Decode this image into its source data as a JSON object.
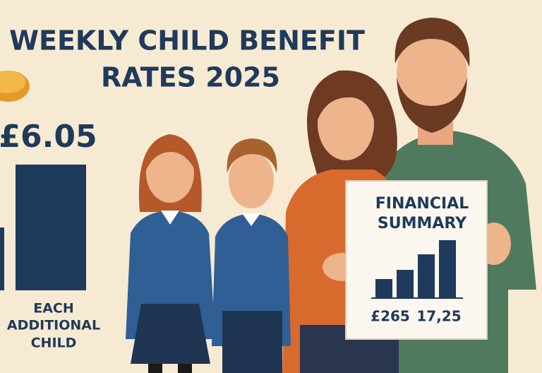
{
  "header": {
    "title_lines": [
      "WEEKLY CHILD BENEFIT",
      "RATES 2025"
    ]
  },
  "rate": {
    "amount": "£6.05",
    "label_lines": [
      "EACH",
      "ADDITIONAL",
      "CHILD"
    ]
  },
  "sign": {
    "title_lines": [
      "FINANCIAL",
      "SUMMARY"
    ],
    "figures": [
      "£265",
      "17,25"
    ]
  }
}
